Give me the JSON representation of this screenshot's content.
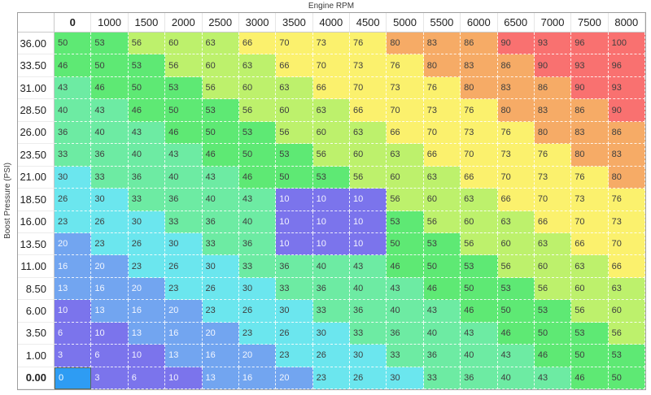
{
  "axes": {
    "x_title": "Engine RPM",
    "y_title": "Boost Pressure (PSI)"
  },
  "table": {
    "selected_row_index": 15,
    "selected_col_index": 0
  },
  "chart_data": {
    "type": "heatmap",
    "title": "",
    "x_label": "Engine RPM",
    "y_label": "Boost Pressure (PSI)",
    "x_ticks": [
      "0",
      "1000",
      "1500",
      "2000",
      "2500",
      "3000",
      "3500",
      "4000",
      "4500",
      "5000",
      "5500",
      "6000",
      "6500",
      "7000",
      "7500",
      "8000"
    ],
    "y_ticks": [
      "36.00",
      "33.50",
      "31.00",
      "28.50",
      "26.00",
      "23.50",
      "21.00",
      "18.50",
      "16.00",
      "13.50",
      "11.00",
      "8.50",
      "6.00",
      "3.50",
      "1.00",
      "0.00"
    ],
    "values": [
      [
        50,
        53,
        56,
        60,
        63,
        66,
        70,
        73,
        76,
        80,
        83,
        86,
        90,
        93,
        96,
        100
      ],
      [
        46,
        50,
        53,
        56,
        60,
        63,
        66,
        70,
        73,
        76,
        80,
        83,
        86,
        90,
        93,
        96
      ],
      [
        43,
        46,
        50,
        53,
        56,
        60,
        63,
        66,
        70,
        73,
        76,
        80,
        83,
        86,
        90,
        93
      ],
      [
        40,
        43,
        46,
        50,
        53,
        56,
        60,
        63,
        66,
        70,
        73,
        76,
        80,
        83,
        86,
        90
      ],
      [
        36,
        40,
        43,
        46,
        50,
        53,
        56,
        60,
        63,
        66,
        70,
        73,
        76,
        80,
        83,
        86
      ],
      [
        33,
        36,
        40,
        43,
        46,
        50,
        53,
        56,
        60,
        63,
        66,
        70,
        73,
        76,
        80,
        83
      ],
      [
        30,
        33,
        36,
        40,
        43,
        46,
        50,
        53,
        56,
        60,
        63,
        66,
        70,
        73,
        76,
        80
      ],
      [
        26,
        30,
        33,
        36,
        40,
        43,
        10,
        10,
        10,
        56,
        60,
        63,
        66,
        70,
        73,
        76
      ],
      [
        23,
        26,
        30,
        33,
        36,
        40,
        10,
        10,
        10,
        53,
        56,
        60,
        63,
        66,
        70,
        73
      ],
      [
        20,
        23,
        26,
        30,
        33,
        36,
        10,
        10,
        10,
        50,
        53,
        56,
        60,
        63,
        66,
        70
      ],
      [
        16,
        20,
        23,
        26,
        30,
        33,
        36,
        40,
        43,
        46,
        50,
        53,
        56,
        60,
        63,
        66
      ],
      [
        13,
        16,
        20,
        23,
        26,
        30,
        33,
        36,
        40,
        43,
        46,
        50,
        53,
        56,
        60,
        63
      ],
      [
        10,
        13,
        16,
        20,
        23,
        26,
        30,
        33,
        36,
        40,
        43,
        46,
        50,
        53,
        56,
        60
      ],
      [
        6,
        10,
        13,
        16,
        20,
        23,
        26,
        30,
        33,
        36,
        40,
        43,
        46,
        50,
        53,
        56
      ],
      [
        3,
        6,
        10,
        13,
        16,
        20,
        23,
        26,
        30,
        33,
        36,
        40,
        43,
        46,
        50,
        53
      ],
      [
        0,
        3,
        6,
        10,
        13,
        16,
        20,
        23,
        26,
        30,
        33,
        36,
        40,
        43,
        46,
        50
      ]
    ],
    "value_range": [
      0,
      100
    ],
    "legend": "none",
    "grid": "white dashed cell borders",
    "selected_cell": {
      "row": "0.00",
      "column": "0",
      "value": 0
    }
  },
  "colors": {
    "bins": [
      {
        "min": 0,
        "max": 0,
        "bg": "#2e9cf3",
        "text": "#ffffff",
        "name": "selected-blue"
      },
      {
        "min": 1,
        "max": 12,
        "bg": "#7b74ec",
        "text": "#f2f2ff",
        "name": "purple"
      },
      {
        "min": 13,
        "max": 22,
        "bg": "#72a5f0",
        "text": "#f2f6ff",
        "name": "cornflower"
      },
      {
        "min": 23,
        "max": 32,
        "bg": "#6be6ee",
        "text": "#3e3e3e",
        "name": "cyan"
      },
      {
        "min": 33,
        "max": 45,
        "bg": "#6debA3",
        "text": "#3e3e3e",
        "name": "mint"
      },
      {
        "min": 46,
        "max": 55,
        "bg": "#5ee974",
        "text": "#3e3e3e",
        "name": "green"
      },
      {
        "min": 56,
        "max": 65,
        "bg": "#bdf16c",
        "text": "#3e3e3e",
        "name": "yellow-green"
      },
      {
        "min": 66,
        "max": 79,
        "bg": "#fbf16d",
        "text": "#3e3e3e",
        "name": "yellow"
      },
      {
        "min": 80,
        "max": 89,
        "bg": "#f6ab66",
        "text": "#3e3e3e",
        "name": "orange"
      },
      {
        "min": 90,
        "max": 100,
        "bg": "#f97170",
        "text": "#3e3e3e",
        "name": "red"
      }
    ],
    "selected_border": "#5c6a57",
    "outer_border": "#9e9e9e",
    "header_separator": "#c9c9c9",
    "grid_line": "#ffffff"
  }
}
